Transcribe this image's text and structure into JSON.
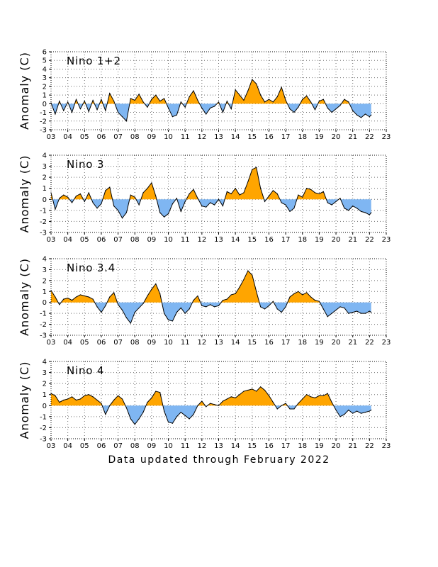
{
  "footer": "Data updated through February 2022",
  "colors": {
    "positive": "#ffa500",
    "negative": "#7fb6f2",
    "line": "#000000",
    "grid": "#6d6d6d"
  },
  "chart_data": [
    {
      "type": "area",
      "title": "Nino 1+2",
      "ylabel": "Anomaly (C)",
      "xlabel": "",
      "ylim": [
        -3,
        6
      ],
      "xlim": [
        2003,
        2023
      ],
      "grid": true,
      "xticks": [
        "03",
        "04",
        "05",
        "06",
        "07",
        "08",
        "09",
        "10",
        "11",
        "12",
        "13",
        "14",
        "15",
        "16",
        "17",
        "18",
        "19",
        "20",
        "21",
        "22",
        "23"
      ],
      "yticks": [
        -3,
        -2,
        -1,
        0,
        1,
        2,
        3,
        4,
        5,
        6
      ],
      "x": [
        2003.0,
        2003.25,
        2003.5,
        2003.75,
        2004.0,
        2004.25,
        2004.5,
        2004.75,
        2005.0,
        2005.25,
        2005.5,
        2005.75,
        2006.0,
        2006.25,
        2006.5,
        2006.75,
        2007.0,
        2007.25,
        2007.5,
        2007.75,
        2008.0,
        2008.25,
        2008.5,
        2008.75,
        2009.0,
        2009.25,
        2009.5,
        2009.75,
        2010.0,
        2010.25,
        2010.5,
        2010.75,
        2011.0,
        2011.25,
        2011.5,
        2011.75,
        2012.0,
        2012.25,
        2012.5,
        2012.75,
        2013.0,
        2013.25,
        2013.5,
        2013.75,
        2014.0,
        2014.25,
        2014.5,
        2014.75,
        2015.0,
        2015.25,
        2015.5,
        2015.75,
        2016.0,
        2016.25,
        2016.5,
        2016.75,
        2017.0,
        2017.25,
        2017.5,
        2017.75,
        2018.0,
        2018.25,
        2018.5,
        2018.75,
        2019.0,
        2019.25,
        2019.5,
        2019.75,
        2020.0,
        2020.25,
        2020.5,
        2020.75,
        2021.0,
        2021.25,
        2021.5,
        2021.75,
        2022.0,
        2022.1
      ],
      "values": [
        0.1,
        -1.2,
        0.3,
        -0.8,
        0.2,
        -1.0,
        0.5,
        -0.6,
        0.3,
        -0.9,
        0.4,
        -0.7,
        0.5,
        -0.8,
        1.2,
        0.3,
        -1.0,
        -1.5,
        -2.0,
        0.6,
        0.4,
        1.1,
        0.2,
        -0.4,
        0.5,
        1.0,
        0.3,
        0.6,
        -0.5,
        -1.5,
        -1.3,
        0.2,
        -0.4,
        0.8,
        1.5,
        0.4,
        -0.5,
        -1.2,
        -0.5,
        -0.3,
        0.2,
        -1.0,
        0.3,
        -0.6,
        1.6,
        1.0,
        0.4,
        1.5,
        2.8,
        2.3,
        1.0,
        0.2,
        0.5,
        0.2,
        0.8,
        1.9,
        0.4,
        -0.6,
        -1.0,
        -0.4,
        0.5,
        0.9,
        0.2,
        -0.7,
        0.3,
        0.5,
        -0.5,
        -1.0,
        -0.6,
        -0.2,
        0.5,
        0.2,
        -0.8,
        -1.3,
        -1.6,
        -1.2,
        -1.5,
        -1.3
      ]
    },
    {
      "type": "area",
      "title": "Nino 3",
      "ylabel": "Anomaly (C)",
      "xlabel": "",
      "ylim": [
        -3,
        4
      ],
      "xlim": [
        2003,
        2023
      ],
      "grid": true,
      "xticks": [
        "03",
        "04",
        "05",
        "06",
        "07",
        "08",
        "09",
        "10",
        "11",
        "12",
        "13",
        "14",
        "15",
        "16",
        "17",
        "18",
        "19",
        "20",
        "21",
        "22",
        "23"
      ],
      "yticks": [
        -3,
        -2,
        -1,
        0,
        1,
        2,
        3,
        4
      ],
      "x": [
        2003.0,
        2003.25,
        2003.5,
        2003.75,
        2004.0,
        2004.25,
        2004.5,
        2004.75,
        2005.0,
        2005.25,
        2005.5,
        2005.75,
        2006.0,
        2006.25,
        2006.5,
        2006.75,
        2007.0,
        2007.25,
        2007.5,
        2007.75,
        2008.0,
        2008.25,
        2008.5,
        2008.75,
        2009.0,
        2009.25,
        2009.5,
        2009.75,
        2010.0,
        2010.25,
        2010.5,
        2010.75,
        2011.0,
        2011.25,
        2011.5,
        2011.75,
        2012.0,
        2012.25,
        2012.5,
        2012.75,
        2013.0,
        2013.25,
        2013.5,
        2013.75,
        2014.0,
        2014.25,
        2014.5,
        2014.75,
        2015.0,
        2015.25,
        2015.5,
        2015.75,
        2016.0,
        2016.25,
        2016.5,
        2016.75,
        2017.0,
        2017.25,
        2017.5,
        2017.75,
        2018.0,
        2018.25,
        2018.5,
        2018.75,
        2019.0,
        2019.25,
        2019.5,
        2019.75,
        2020.0,
        2020.25,
        2020.5,
        2020.75,
        2021.0,
        2021.25,
        2021.5,
        2021.75,
        2022.0,
        2022.1
      ],
      "values": [
        0.6,
        -0.9,
        0.1,
        0.4,
        0.2,
        -0.3,
        0.3,
        0.5,
        -0.2,
        0.6,
        -0.3,
        -0.8,
        -0.4,
        0.8,
        1.1,
        -0.6,
        -1.0,
        -1.7,
        -1.2,
        0.4,
        0.2,
        -0.5,
        0.6,
        1.0,
        1.5,
        0.3,
        -1.2,
        -1.6,
        -1.3,
        -0.4,
        0.1,
        -1.1,
        -0.2,
        0.5,
        0.9,
        0.1,
        -0.6,
        -0.7,
        -0.3,
        -0.5,
        0.0,
        -0.6,
        0.7,
        0.5,
        1.0,
        0.4,
        0.6,
        1.6,
        2.7,
        2.9,
        1.0,
        -0.2,
        0.3,
        0.8,
        0.5,
        -0.3,
        -0.5,
        -1.1,
        -0.8,
        0.4,
        0.2,
        1.0,
        0.9,
        0.6,
        0.5,
        0.7,
        -0.3,
        -0.5,
        -0.2,
        0.1,
        -0.8,
        -1.0,
        -0.6,
        -0.8,
        -1.1,
        -1.2,
        -1.4,
        -1.2
      ]
    },
    {
      "type": "area",
      "title": "Nino 3.4",
      "ylabel": "Anomaly (C)",
      "xlabel": "",
      "ylim": [
        -3,
        4
      ],
      "xlim": [
        2003,
        2023
      ],
      "grid": true,
      "xticks": [
        "03",
        "04",
        "05",
        "06",
        "07",
        "08",
        "09",
        "10",
        "11",
        "12",
        "13",
        "14",
        "15",
        "16",
        "17",
        "18",
        "19",
        "20",
        "21",
        "22",
        "23"
      ],
      "yticks": [
        -3,
        -2,
        -1,
        0,
        1,
        2,
        3,
        4
      ],
      "x": [
        2003.0,
        2003.25,
        2003.5,
        2003.75,
        2004.0,
        2004.25,
        2004.5,
        2004.75,
        2005.0,
        2005.25,
        2005.5,
        2005.75,
        2006.0,
        2006.25,
        2006.5,
        2006.75,
        2007.0,
        2007.25,
        2007.5,
        2007.75,
        2008.0,
        2008.25,
        2008.5,
        2008.75,
        2009.0,
        2009.25,
        2009.5,
        2009.75,
        2010.0,
        2010.25,
        2010.5,
        2010.75,
        2011.0,
        2011.25,
        2011.5,
        2011.75,
        2012.0,
        2012.25,
        2012.5,
        2012.75,
        2013.0,
        2013.25,
        2013.5,
        2013.75,
        2014.0,
        2014.25,
        2014.5,
        2014.75,
        2015.0,
        2015.25,
        2015.5,
        2015.75,
        2016.0,
        2016.25,
        2016.5,
        2016.75,
        2017.0,
        2017.25,
        2017.5,
        2017.75,
        2018.0,
        2018.25,
        2018.5,
        2018.75,
        2019.0,
        2019.25,
        2019.5,
        2019.75,
        2020.0,
        2020.25,
        2020.5,
        2020.75,
        2021.0,
        2021.25,
        2021.5,
        2021.75,
        2022.0,
        2022.1
      ],
      "values": [
        1.1,
        0.5,
        -0.2,
        0.3,
        0.4,
        0.2,
        0.5,
        0.7,
        0.6,
        0.5,
        0.3,
        -0.4,
        -0.9,
        -0.3,
        0.5,
        0.9,
        -0.2,
        -0.7,
        -1.4,
        -1.9,
        -0.9,
        -0.5,
        -0.1,
        0.6,
        1.2,
        1.7,
        0.8,
        -1.0,
        -1.6,
        -1.7,
        -0.9,
        -0.5,
        -1.0,
        -0.6,
        0.2,
        0.6,
        -0.3,
        -0.4,
        -0.2,
        -0.4,
        -0.3,
        0.2,
        0.3,
        0.7,
        0.8,
        1.4,
        2.1,
        2.9,
        2.5,
        1.0,
        -0.4,
        -0.6,
        -0.3,
        0.1,
        -0.6,
        -0.9,
        -0.4,
        0.5,
        0.8,
        1.0,
        0.7,
        0.9,
        0.5,
        0.2,
        0.1,
        -0.6,
        -1.3,
        -1.0,
        -0.7,
        -0.4,
        -0.5,
        -1.0,
        -0.9,
        -0.8,
        -1.0,
        -1.0,
        -0.8,
        -0.9
      ]
    },
    {
      "type": "area",
      "title": "Nino 4",
      "ylabel": "Anomaly (C)",
      "xlabel": "",
      "ylim": [
        -3,
        4
      ],
      "xlim": [
        2003,
        2023
      ],
      "grid": true,
      "xticks": [
        "03",
        "04",
        "05",
        "06",
        "07",
        "08",
        "09",
        "10",
        "11",
        "12",
        "13",
        "14",
        "15",
        "16",
        "17",
        "18",
        "19",
        "20",
        "21",
        "22",
        "23"
      ],
      "yticks": [
        -3,
        -2,
        -1,
        0,
        1,
        2,
        3,
        4
      ],
      "x": [
        2003.0,
        2003.25,
        2003.5,
        2003.75,
        2004.0,
        2004.25,
        2004.5,
        2004.75,
        2005.0,
        2005.25,
        2005.5,
        2005.75,
        2006.0,
        2006.25,
        2006.5,
        2006.75,
        2007.0,
        2007.25,
        2007.5,
        2007.75,
        2008.0,
        2008.25,
        2008.5,
        2008.75,
        2009.0,
        2009.25,
        2009.5,
        2009.75,
        2010.0,
        2010.25,
        2010.5,
        2010.75,
        2011.0,
        2011.25,
        2011.5,
        2011.75,
        2012.0,
        2012.25,
        2012.5,
        2012.75,
        2013.0,
        2013.25,
        2013.5,
        2013.75,
        2014.0,
        2014.25,
        2014.5,
        2014.75,
        2015.0,
        2015.25,
        2015.5,
        2015.75,
        2016.0,
        2016.25,
        2016.5,
        2016.75,
        2017.0,
        2017.25,
        2017.5,
        2017.75,
        2018.0,
        2018.25,
        2018.5,
        2018.75,
        2019.0,
        2019.25,
        2019.5,
        2019.75,
        2020.0,
        2020.25,
        2020.5,
        2020.75,
        2021.0,
        2021.25,
        2021.5,
        2021.75,
        2022.0,
        2022.1
      ],
      "values": [
        1.1,
        0.9,
        0.3,
        0.5,
        0.6,
        0.8,
        0.5,
        0.6,
        0.9,
        1.0,
        0.8,
        0.5,
        0.2,
        -0.8,
        0.0,
        0.5,
        0.9,
        0.6,
        -0.2,
        -1.2,
        -1.7,
        -1.2,
        -0.6,
        0.3,
        0.7,
        1.3,
        1.2,
        -0.5,
        -1.5,
        -1.6,
        -1.0,
        -0.6,
        -0.9,
        -1.2,
        -0.8,
        0.0,
        0.4,
        -0.1,
        0.2,
        0.1,
        0.0,
        0.4,
        0.6,
        0.8,
        0.7,
        1.0,
        1.3,
        1.4,
        1.5,
        1.3,
        1.7,
        1.4,
        0.9,
        0.3,
        -0.3,
        0.0,
        0.2,
        -0.3,
        -0.3,
        0.2,
        0.6,
        1.0,
        0.8,
        0.7,
        0.9,
        0.9,
        1.1,
        0.3,
        -0.4,
        -1.0,
        -0.8,
        -0.4,
        -0.7,
        -0.5,
        -0.7,
        -0.6,
        -0.5,
        -0.4
      ]
    }
  ]
}
